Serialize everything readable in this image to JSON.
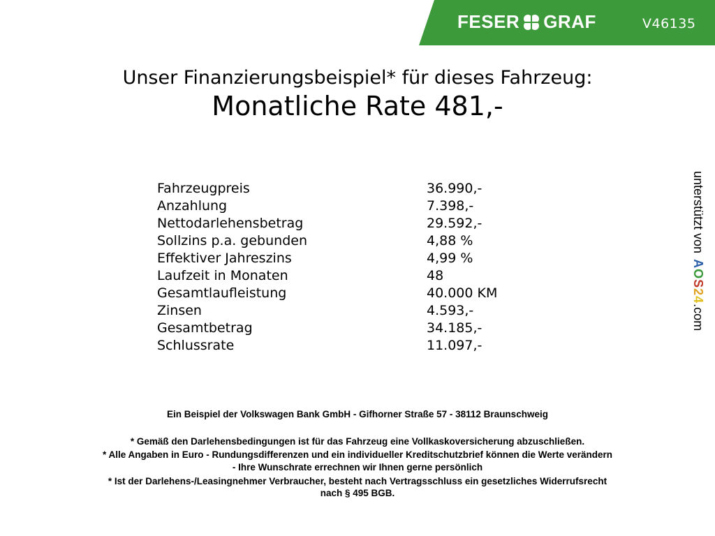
{
  "header": {
    "brand_left": "FESER",
    "brand_right": "GRAF",
    "vehicle_id": "V46135",
    "brand_color": "#3d9a3b"
  },
  "title": {
    "line1": "Unser Finanzierungsbeispiel* für dieses Fahrzeug:",
    "line2": "Monatliche Rate 481,-"
  },
  "rows": [
    {
      "label": "Fahrzeugpreis",
      "value": "36.990,-"
    },
    {
      "label": "Anzahlung",
      "value": "7.398,-"
    },
    {
      "label": "Nettodarlehensbetrag",
      "value": "29.592,-"
    },
    {
      "label": "Sollzins p.a. gebunden",
      "value": "4,88 %"
    },
    {
      "label": "Effektiver Jahreszins",
      "value": "4,99 %"
    },
    {
      "label": "Laufzeit in Monaten",
      "value": "48"
    },
    {
      "label": "Gesamtlaufleistung",
      "value": "40.000 KM"
    },
    {
      "label": "Zinsen",
      "value": "4.593,-"
    },
    {
      "label": "Gesamtbetrag",
      "value": "34.185,-"
    },
    {
      "label": "Schlussrate",
      "value": "11.097,-"
    }
  ],
  "footer": {
    "bank": "Ein Beispiel der Volkswagen Bank GmbH - Gifhorner Straße 57 - 38112 Braunschweig",
    "note1": "* Gemäß den Darlehensbedingungen ist für das Fahrzeug eine Vollkaskoversicherung abzuschließen.",
    "note2a": "* Alle Angaben in Euro - Rundungsdifferenzen und ein individueller Kreditschutzbrief können die Werte verändern",
    "note2b": "- Ihre Wunschrate errechnen wir Ihnen gerne persönlich",
    "note3a": "* Ist der Darlehens-/Leasingnehmer Verbraucher, besteht nach Vertragsschluss ein gesetzliches Widerrufsrecht",
    "note3b": "nach § 495 BGB."
  },
  "side": {
    "prefix": "unterstützt von",
    "logo_letters": [
      "A",
      "O",
      "S",
      "2",
      "4"
    ],
    "logo_colors": [
      "#2b5fa8",
      "#3a9a3a",
      "#c0392b",
      "#e0a020",
      "#e0c020"
    ],
    "suffix": ".com"
  }
}
